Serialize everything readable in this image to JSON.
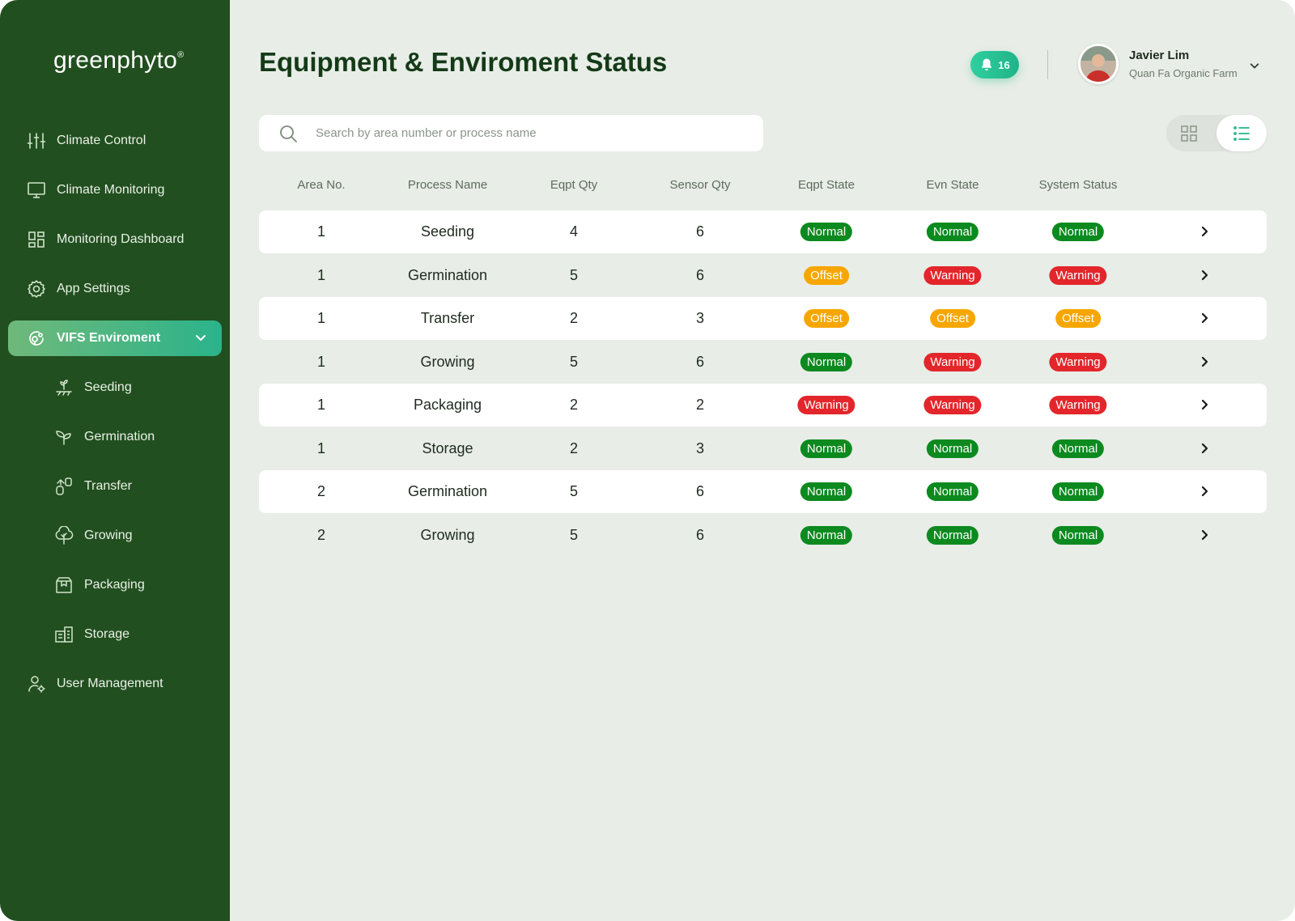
{
  "app": {
    "logo_text": "greenphyto",
    "logo_mark": "®"
  },
  "sidebar": {
    "items": [
      {
        "label": "Climate Control",
        "icon": "sliders-icon"
      },
      {
        "label": "Climate Monitoring",
        "icon": "monitor-icon"
      },
      {
        "label": "Monitoring Dashboard",
        "icon": "dashboard-icon"
      },
      {
        "label": "App Settings",
        "icon": "gear-icon"
      },
      {
        "label": "VIFS Enviroment",
        "icon": "environment-icon",
        "active": true,
        "expanded": true
      },
      {
        "label": "Seeding",
        "icon": "seeding-icon",
        "sub": true
      },
      {
        "label": "Germination",
        "icon": "sprout-icon",
        "sub": true
      },
      {
        "label": "Transfer",
        "icon": "transfer-icon",
        "sub": true
      },
      {
        "label": "Growing",
        "icon": "plant-icon",
        "sub": true
      },
      {
        "label": "Packaging",
        "icon": "package-icon",
        "sub": true
      },
      {
        "label": "Storage",
        "icon": "storage-icon",
        "sub": true
      },
      {
        "label": "User Management",
        "icon": "user-gear-icon"
      }
    ]
  },
  "header": {
    "title": "Equipment & Enviroment Status",
    "notification_count": "16",
    "user_name": "Javier Lim",
    "user_org": "Quan Fa Organic Farm"
  },
  "search": {
    "placeholder": "Search by area number or process name",
    "value": ""
  },
  "view_toggle": {
    "selected": "list"
  },
  "table": {
    "columns": [
      "Area No.",
      "Process Name",
      "Eqpt Qty",
      "Sensor Qty",
      "Eqpt State",
      "Evn State",
      "System Status"
    ],
    "rows": [
      {
        "area": "1",
        "process": "Seeding",
        "eqpt_qty": "4",
        "sensor_qty": "6",
        "eqpt_state": "Normal",
        "env_state": "Normal",
        "system_status": "Normal"
      },
      {
        "area": "1",
        "process": "Germination",
        "eqpt_qty": "5",
        "sensor_qty": "6",
        "eqpt_state": "Offset",
        "env_state": "Warning",
        "system_status": "Warning"
      },
      {
        "area": "1",
        "process": "Transfer",
        "eqpt_qty": "2",
        "sensor_qty": "3",
        "eqpt_state": "Offset",
        "env_state": "Offset",
        "system_status": "Offset"
      },
      {
        "area": "1",
        "process": "Growing",
        "eqpt_qty": "5",
        "sensor_qty": "6",
        "eqpt_state": "Normal",
        "env_state": "Warning",
        "system_status": "Warning"
      },
      {
        "area": "1",
        "process": "Packaging",
        "eqpt_qty": "2",
        "sensor_qty": "2",
        "eqpt_state": "Warning",
        "env_state": "Warning",
        "system_status": "Warning"
      },
      {
        "area": "1",
        "process": "Storage",
        "eqpt_qty": "2",
        "sensor_qty": "3",
        "eqpt_state": "Normal",
        "env_state": "Normal",
        "system_status": "Normal"
      },
      {
        "area": "2",
        "process": "Germination",
        "eqpt_qty": "5",
        "sensor_qty": "6",
        "eqpt_state": "Normal",
        "env_state": "Normal",
        "system_status": "Normal"
      },
      {
        "area": "2",
        "process": "Growing",
        "eqpt_qty": "5",
        "sensor_qty": "6",
        "eqpt_state": "Normal",
        "env_state": "Normal",
        "system_status": "Normal"
      }
    ]
  },
  "colors": {
    "sidebar_bg": "#224f20",
    "page_bg": "#e8ede7",
    "accent": "#2bb38b",
    "status_normal": "#0c8a1f",
    "status_offset": "#f7a600",
    "status_warning": "#e3262b"
  }
}
